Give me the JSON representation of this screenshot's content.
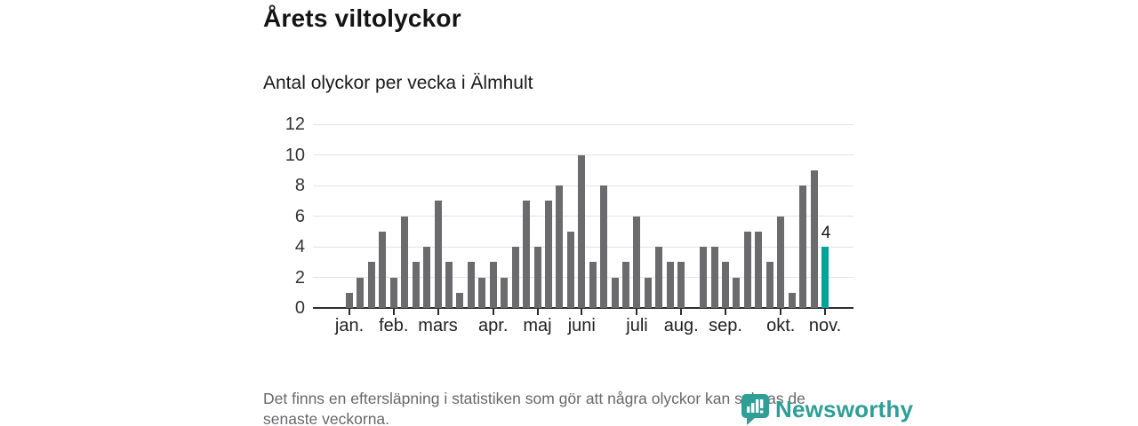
{
  "header": {
    "title": "Årets viltolyckor",
    "subtitle": "Antal olyckor per vecka i Älmhult"
  },
  "chart_data": {
    "type": "bar",
    "title": "Årets viltolyckor",
    "subtitle": "Antal olyckor per vecka i Älmhult",
    "xlabel": "",
    "ylabel": "",
    "ylim": [
      0,
      12
    ],
    "yticks": [
      0,
      2,
      4,
      6,
      8,
      10,
      12
    ],
    "grid": true,
    "x_unit": "vecka",
    "values": [
      1,
      2,
      3,
      5,
      2,
      6,
      3,
      4,
      7,
      3,
      1,
      3,
      2,
      3,
      2,
      4,
      7,
      4,
      7,
      8,
      5,
      10,
      3,
      8,
      2,
      3,
      6,
      2,
      4,
      3,
      3,
      0,
      4,
      4,
      3,
      2,
      5,
      5,
      3,
      6,
      1,
      8,
      9,
      4
    ],
    "month_ticks": [
      {
        "label": "jan.",
        "week": 1
      },
      {
        "label": "feb.",
        "week": 5
      },
      {
        "label": "mars",
        "week": 9
      },
      {
        "label": "apr.",
        "week": 14
      },
      {
        "label": "maj",
        "week": 18
      },
      {
        "label": "juni",
        "week": 22
      },
      {
        "label": "juli",
        "week": 27
      },
      {
        "label": "aug.",
        "week": 31
      },
      {
        "label": "sep.",
        "week": 35
      },
      {
        "label": "okt.",
        "week": 40
      },
      {
        "label": "nov.",
        "week": 44
      }
    ],
    "last_value_label": "4",
    "bar_color": "#6b6b6e",
    "highlight_color": "#00a49b",
    "legend_position": "none"
  },
  "footer": {
    "note_line1": "Det finns en eftersläpning i statistiken som gör att några olyckor kan saknas de",
    "note_line2": "senaste veckorna.",
    "brand_name": "Newsworthy",
    "brand_color": "#2e9e97"
  }
}
